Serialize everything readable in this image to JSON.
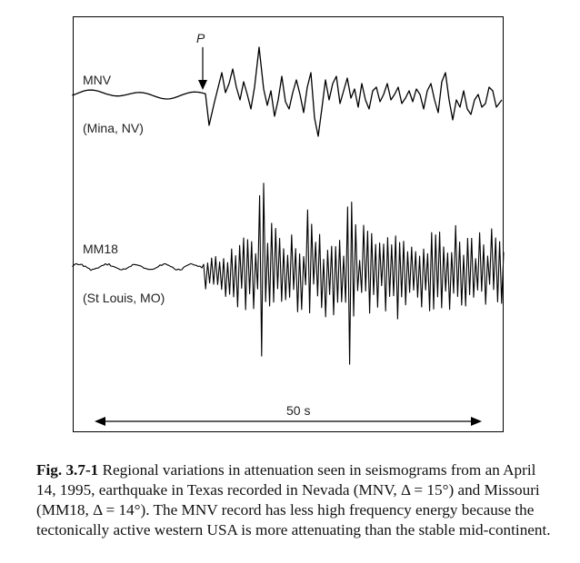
{
  "figure": {
    "station1": {
      "code": "MNV",
      "location": "(Mina, NV)"
    },
    "station2": {
      "code": "MM18",
      "location": "(St Louis, MO)"
    },
    "p_label": "P",
    "scale_label": "50 s",
    "caption": {
      "fig_number": "Fig. 3.7-1",
      "text": "Regional variations in attenuation seen in seismograms from an April 14, 1995, earthquake in Texas recorded in Nevada (MNV, Δ = 15°) and Missouri (MM18, Δ = 14°). The MNV record has less high frequency energy because the tectonically active western USA is more attenuating than the stable mid-continent."
    }
  }
}
